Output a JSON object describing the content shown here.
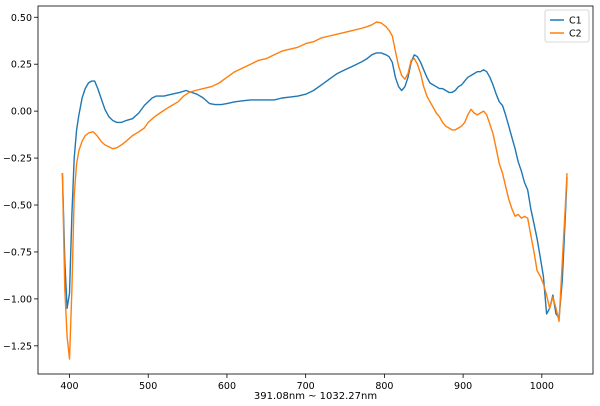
{
  "chart_data": {
    "type": "line",
    "title": "",
    "xlabel": "391.08nm ~ 1032.27nm",
    "ylabel": "",
    "xlim": [
      360,
      1065
    ],
    "ylim": [
      -1.4,
      0.56
    ],
    "x_ticks": [
      400,
      500,
      600,
      700,
      800,
      900,
      1000
    ],
    "y_ticks": [
      0.5,
      0.25,
      0.0,
      -0.25,
      -0.5,
      -0.75,
      -1.0,
      -1.25
    ],
    "x_tick_labels": [
      "400",
      "500",
      "600",
      "700",
      "800",
      "900",
      "1000"
    ],
    "y_tick_labels": [
      "0.50",
      "0.25",
      "0.00",
      "−0.25",
      "−0.50",
      "−0.75",
      "−1.00",
      "−1.25"
    ],
    "grid": false,
    "legend_position": "top-right",
    "series": [
      {
        "name": "C1",
        "color": "#1f77b4",
        "points": [
          [
            391,
            -0.33
          ],
          [
            394,
            -0.8
          ],
          [
            397,
            -1.05
          ],
          [
            400,
            -0.97
          ],
          [
            403,
            -0.55
          ],
          [
            406,
            -0.25
          ],
          [
            409,
            -0.1
          ],
          [
            412,
            -0.02
          ],
          [
            416,
            0.07
          ],
          [
            420,
            0.12
          ],
          [
            424,
            0.15
          ],
          [
            428,
            0.16
          ],
          [
            432,
            0.16
          ],
          [
            436,
            0.12
          ],
          [
            440,
            0.07
          ],
          [
            445,
            0.01
          ],
          [
            450,
            -0.03
          ],
          [
            455,
            -0.05
          ],
          [
            460,
            -0.06
          ],
          [
            466,
            -0.06
          ],
          [
            472,
            -0.05
          ],
          [
            480,
            -0.04
          ],
          [
            488,
            -0.01
          ],
          [
            495,
            0.03
          ],
          [
            500,
            0.05
          ],
          [
            505,
            0.07
          ],
          [
            510,
            0.08
          ],
          [
            520,
            0.08
          ],
          [
            530,
            0.09
          ],
          [
            540,
            0.1
          ],
          [
            548,
            0.11
          ],
          [
            555,
            0.1
          ],
          [
            562,
            0.09
          ],
          [
            570,
            0.07
          ],
          [
            578,
            0.04
          ],
          [
            585,
            0.035
          ],
          [
            593,
            0.035
          ],
          [
            600,
            0.04
          ],
          [
            610,
            0.05
          ],
          [
            620,
            0.055
          ],
          [
            630,
            0.06
          ],
          [
            640,
            0.06
          ],
          [
            650,
            0.06
          ],
          [
            660,
            0.06
          ],
          [
            670,
            0.07
          ],
          [
            680,
            0.075
          ],
          [
            690,
            0.08
          ],
          [
            700,
            0.09
          ],
          [
            710,
            0.11
          ],
          [
            720,
            0.14
          ],
          [
            730,
            0.17
          ],
          [
            740,
            0.2
          ],
          [
            750,
            0.22
          ],
          [
            760,
            0.24
          ],
          [
            770,
            0.26
          ],
          [
            778,
            0.28
          ],
          [
            784,
            0.3
          ],
          [
            790,
            0.31
          ],
          [
            796,
            0.31
          ],
          [
            802,
            0.3
          ],
          [
            806,
            0.29
          ],
          [
            810,
            0.26
          ],
          [
            814,
            0.18
          ],
          [
            818,
            0.13
          ],
          [
            822,
            0.11
          ],
          [
            826,
            0.13
          ],
          [
            830,
            0.18
          ],
          [
            834,
            0.26
          ],
          [
            838,
            0.3
          ],
          [
            842,
            0.29
          ],
          [
            846,
            0.26
          ],
          [
            850,
            0.22
          ],
          [
            854,
            0.18
          ],
          [
            858,
            0.15
          ],
          [
            862,
            0.14
          ],
          [
            866,
            0.13
          ],
          [
            870,
            0.12
          ],
          [
            874,
            0.12
          ],
          [
            878,
            0.11
          ],
          [
            882,
            0.1
          ],
          [
            886,
            0.1
          ],
          [
            890,
            0.11
          ],
          [
            894,
            0.13
          ],
          [
            898,
            0.14
          ],
          [
            902,
            0.16
          ],
          [
            906,
            0.18
          ],
          [
            910,
            0.19
          ],
          [
            914,
            0.2
          ],
          [
            918,
            0.21
          ],
          [
            922,
            0.21
          ],
          [
            926,
            0.22
          ],
          [
            930,
            0.21
          ],
          [
            934,
            0.18
          ],
          [
            938,
            0.14
          ],
          [
            942,
            0.09
          ],
          [
            946,
            0.05
          ],
          [
            950,
            0.03
          ],
          [
            954,
            -0.02
          ],
          [
            958,
            -0.08
          ],
          [
            962,
            -0.14
          ],
          [
            966,
            -0.2
          ],
          [
            970,
            -0.27
          ],
          [
            974,
            -0.32
          ],
          [
            978,
            -0.38
          ],
          [
            982,
            -0.42
          ],
          [
            986,
            -0.52
          ],
          [
            990,
            -0.6
          ],
          [
            994,
            -0.68
          ],
          [
            998,
            -0.78
          ],
          [
            1002,
            -0.88
          ],
          [
            1006,
            -1.08
          ],
          [
            1010,
            -1.05
          ],
          [
            1014,
            -0.98
          ],
          [
            1018,
            -1.08
          ],
          [
            1022,
            -1.1
          ],
          [
            1026,
            -0.9
          ],
          [
            1030,
            -0.55
          ],
          [
            1032,
            -0.35
          ]
        ]
      },
      {
        "name": "C2",
        "color": "#ff7f0e",
        "points": [
          [
            391,
            -0.33
          ],
          [
            394,
            -0.95
          ],
          [
            397,
            -1.2
          ],
          [
            400,
            -1.32
          ],
          [
            403,
            -0.95
          ],
          [
            406,
            -0.45
          ],
          [
            409,
            -0.28
          ],
          [
            412,
            -0.21
          ],
          [
            416,
            -0.16
          ],
          [
            420,
            -0.13
          ],
          [
            425,
            -0.115
          ],
          [
            430,
            -0.11
          ],
          [
            435,
            -0.13
          ],
          [
            440,
            -0.16
          ],
          [
            445,
            -0.18
          ],
          [
            450,
            -0.19
          ],
          [
            455,
            -0.2
          ],
          [
            460,
            -0.195
          ],
          [
            466,
            -0.18
          ],
          [
            472,
            -0.16
          ],
          [
            480,
            -0.13
          ],
          [
            488,
            -0.11
          ],
          [
            495,
            -0.09
          ],
          [
            500,
            -0.06
          ],
          [
            508,
            -0.03
          ],
          [
            515,
            -0.01
          ],
          [
            522,
            0.01
          ],
          [
            530,
            0.03
          ],
          [
            538,
            0.05
          ],
          [
            545,
            0.08
          ],
          [
            552,
            0.1
          ],
          [
            560,
            0.11
          ],
          [
            570,
            0.12
          ],
          [
            580,
            0.13
          ],
          [
            590,
            0.15
          ],
          [
            600,
            0.18
          ],
          [
            610,
            0.21
          ],
          [
            620,
            0.23
          ],
          [
            630,
            0.25
          ],
          [
            640,
            0.27
          ],
          [
            650,
            0.28
          ],
          [
            660,
            0.3
          ],
          [
            670,
            0.32
          ],
          [
            680,
            0.33
          ],
          [
            690,
            0.34
          ],
          [
            700,
            0.36
          ],
          [
            710,
            0.37
          ],
          [
            720,
            0.39
          ],
          [
            730,
            0.4
          ],
          [
            740,
            0.41
          ],
          [
            750,
            0.42
          ],
          [
            760,
            0.43
          ],
          [
            770,
            0.44
          ],
          [
            778,
            0.45
          ],
          [
            784,
            0.46
          ],
          [
            790,
            0.475
          ],
          [
            796,
            0.47
          ],
          [
            802,
            0.45
          ],
          [
            806,
            0.43
          ],
          [
            810,
            0.4
          ],
          [
            814,
            0.32
          ],
          [
            818,
            0.24
          ],
          [
            822,
            0.19
          ],
          [
            826,
            0.17
          ],
          [
            830,
            0.2
          ],
          [
            834,
            0.27
          ],
          [
            838,
            0.28
          ],
          [
            842,
            0.25
          ],
          [
            846,
            0.2
          ],
          [
            850,
            0.13
          ],
          [
            854,
            0.08
          ],
          [
            858,
            0.05
          ],
          [
            862,
            0.02
          ],
          [
            866,
            -0.01
          ],
          [
            870,
            -0.03
          ],
          [
            874,
            -0.06
          ],
          [
            878,
            -0.08
          ],
          [
            882,
            -0.09
          ],
          [
            886,
            -0.1
          ],
          [
            890,
            -0.1
          ],
          [
            894,
            -0.09
          ],
          [
            898,
            -0.08
          ],
          [
            902,
            -0.06
          ],
          [
            906,
            -0.02
          ],
          [
            910,
            0.01
          ],
          [
            914,
            -0.01
          ],
          [
            918,
            -0.02
          ],
          [
            922,
            -0.01
          ],
          [
            926,
            0.0
          ],
          [
            930,
            -0.02
          ],
          [
            934,
            -0.07
          ],
          [
            938,
            -0.12
          ],
          [
            942,
            -0.2
          ],
          [
            946,
            -0.28
          ],
          [
            950,
            -0.33
          ],
          [
            954,
            -0.4
          ],
          [
            958,
            -0.47
          ],
          [
            962,
            -0.52
          ],
          [
            966,
            -0.56
          ],
          [
            970,
            -0.55
          ],
          [
            974,
            -0.57
          ],
          [
            978,
            -0.56
          ],
          [
            982,
            -0.57
          ],
          [
            986,
            -0.66
          ],
          [
            990,
            -0.75
          ],
          [
            994,
            -0.85
          ],
          [
            998,
            -0.88
          ],
          [
            1002,
            -0.92
          ],
          [
            1006,
            -0.98
          ],
          [
            1010,
            -1.05
          ],
          [
            1014,
            -0.99
          ],
          [
            1018,
            -1.05
          ],
          [
            1022,
            -1.12
          ],
          [
            1026,
            -0.8
          ],
          [
            1030,
            -0.5
          ],
          [
            1032,
            -0.33
          ]
        ]
      }
    ]
  }
}
